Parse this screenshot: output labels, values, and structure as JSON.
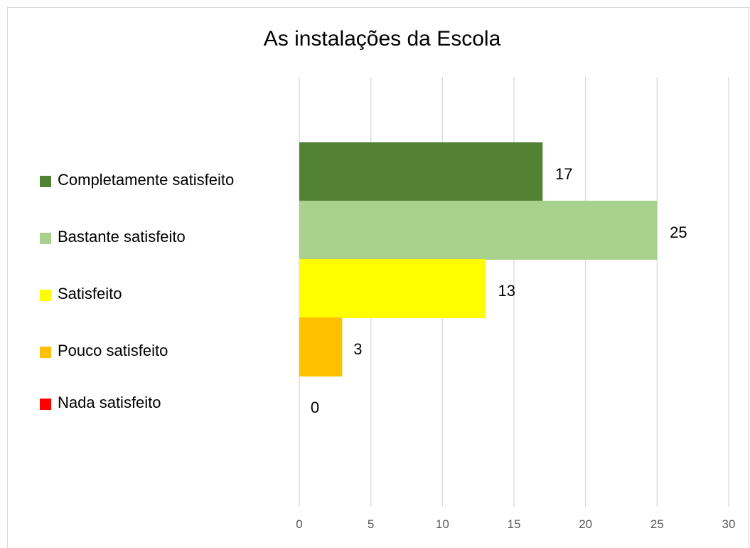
{
  "chart_data": {
    "type": "bar",
    "orientation": "horizontal",
    "title": "As instalações da Escola",
    "xlabel": "",
    "ylabel": "",
    "xlim": [
      0,
      30
    ],
    "x_ticks": [
      0,
      5,
      10,
      15,
      20,
      25,
      30
    ],
    "grid": "vertical",
    "legend_position": "left",
    "series": [
      {
        "name": "Completamente satisfeito",
        "value": 17,
        "color": "#548235"
      },
      {
        "name": "Bastante satisfeito",
        "value": 25,
        "color": "#a9d18e"
      },
      {
        "name": "Satisfeito",
        "value": 13,
        "color": "#ffff00"
      },
      {
        "name": "Pouco satisfeito",
        "value": 3,
        "color": "#ffc000"
      },
      {
        "name": "Nada satisfeito",
        "value": 0,
        "color": "#ff0000"
      }
    ]
  }
}
